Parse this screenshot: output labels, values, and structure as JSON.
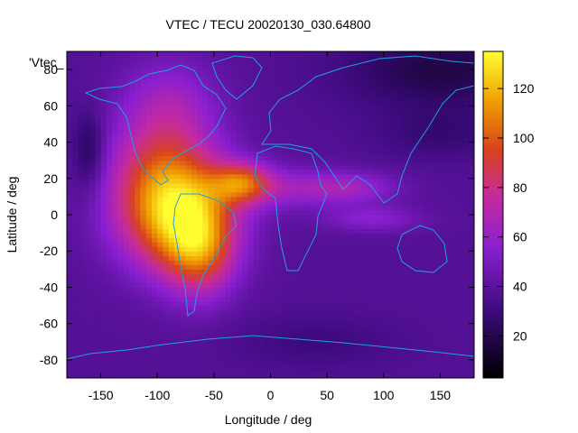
{
  "chart_data": {
    "type": "heatmap",
    "title": "VTEC / TECU 20020130_030.64800",
    "xlabel": "Longitude / deg",
    "ylabel": "Latitude / deg",
    "xlim": [
      -180,
      180
    ],
    "ylim": [
      -90,
      90
    ],
    "xticks": [
      -150,
      -100,
      -50,
      0,
      50,
      100,
      150
    ],
    "yticks": [
      -80,
      -60,
      -40,
      -20,
      0,
      20,
      40,
      60,
      80
    ],
    "colorbar": {
      "range": [
        3,
        135
      ],
      "ticks": [
        20,
        40,
        60,
        80,
        100,
        120
      ]
    },
    "legend_label": "'Vtec_",
    "regions": [
      {
        "lon": -90,
        "lat": 60,
        "sx": 30,
        "sy": 18,
        "amp": 25
      },
      {
        "lon": -100,
        "lat": 30,
        "sx": 35,
        "sy": 18,
        "amp": 22
      },
      {
        "lon": -85,
        "lat": 2,
        "sx": 35,
        "sy": 22,
        "amp": 85
      },
      {
        "lon": -62,
        "lat": -20,
        "sx": 22,
        "sy": 18,
        "amp": 45
      },
      {
        "lon": -25,
        "lat": 18,
        "sx": 18,
        "sy": 8,
        "amp": 45
      },
      {
        "lon": 10,
        "lat": 15,
        "sx": 40,
        "sy": 8,
        "amp": 20
      },
      {
        "lon": 70,
        "lat": 15,
        "sx": 30,
        "sy": 6,
        "amp": 22
      },
      {
        "lon": 90,
        "lat": -2,
        "sx": 30,
        "sy": 5,
        "amp": 18
      },
      {
        "lon": -160,
        "lat": 35,
        "sx": 10,
        "sy": 15,
        "amp": -20
      },
      {
        "lon": 150,
        "lat": 80,
        "sx": 60,
        "sy": 15,
        "amp": -20
      },
      {
        "lon": 150,
        "lat": 45,
        "sx": 40,
        "sy": 10,
        "amp": -10
      },
      {
        "lon": 40,
        "lat": -70,
        "sx": 50,
        "sy": 10,
        "amp": -8
      }
    ],
    "base_value": 38
  }
}
